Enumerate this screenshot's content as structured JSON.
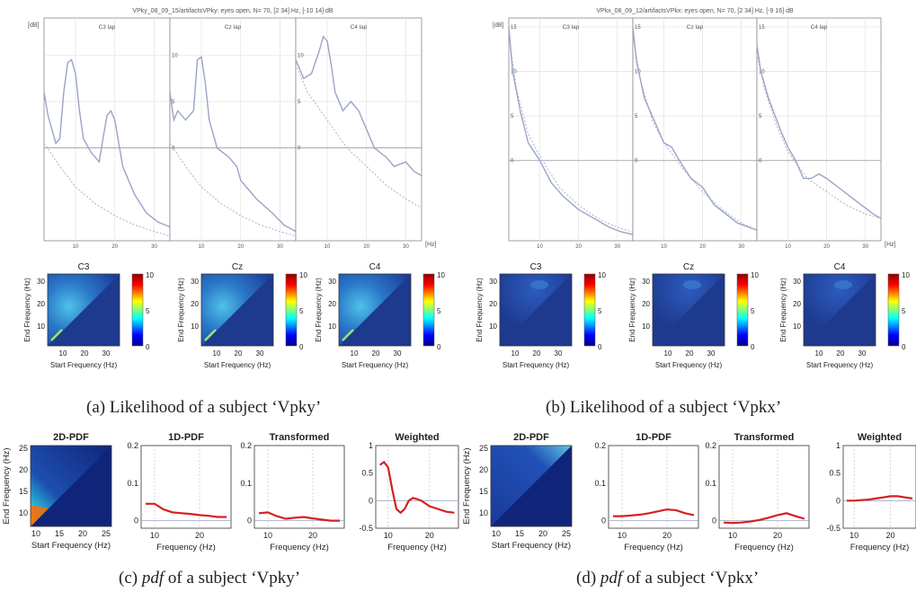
{
  "spectra": [
    {
      "title": "VPky_08_09_15/artifactsVPky: eyes open, N= 70, [2 34] Hz, [-10 14] dB",
      "yunit": "[dB]",
      "xunit": "[Hz]",
      "ylim": [
        -10,
        14
      ],
      "xlim": [
        2,
        34
      ],
      "xticks": [
        "10",
        "20",
        "30"
      ],
      "yticks": [
        {
          "v": 10,
          "t": "10"
        },
        {
          "v": 5,
          "t": "5"
        },
        {
          "v": 0,
          "t": "0"
        }
      ],
      "zero": 0,
      "panels": [
        {
          "label": "C3 lap",
          "curve": [
            [
              2,
              6
            ],
            [
              3,
              3.5
            ],
            [
              5,
              0.5
            ],
            [
              6,
              1
            ],
            [
              7,
              6
            ],
            [
              8,
              9.2
            ],
            [
              9,
              9.5
            ],
            [
              10,
              8
            ],
            [
              11,
              4
            ],
            [
              12,
              1
            ],
            [
              14,
              -0.5
            ],
            [
              16,
              -1.5
            ],
            [
              17,
              1
            ],
            [
              18,
              3.5
            ],
            [
              19,
              4
            ],
            [
              20,
              3
            ],
            [
              22,
              -2
            ],
            [
              25,
              -5
            ],
            [
              28,
              -7
            ],
            [
              31,
              -8
            ],
            [
              34,
              -8.5
            ]
          ],
          "fit": [
            [
              2,
              0.5
            ],
            [
              6,
              -2
            ],
            [
              10,
              -4.2
            ],
            [
              15,
              -6
            ],
            [
              20,
              -7.3
            ],
            [
              25,
              -8.3
            ],
            [
              30,
              -9
            ],
            [
              34,
              -9.5
            ]
          ]
        },
        {
          "label": "Cz lap",
          "curve": [
            [
              2,
              6
            ],
            [
              3,
              3
            ],
            [
              4,
              4
            ],
            [
              6,
              3
            ],
            [
              8,
              4
            ],
            [
              9,
              9.5
            ],
            [
              10,
              9.8
            ],
            [
              11,
              7
            ],
            [
              12,
              3
            ],
            [
              14,
              0
            ],
            [
              17,
              -1
            ],
            [
              19,
              -2
            ],
            [
              20,
              -3.5
            ],
            [
              24,
              -5.5
            ],
            [
              28,
              -7
            ],
            [
              31,
              -8.3
            ],
            [
              34,
              -9
            ]
          ],
          "fit": [
            [
              2,
              0.5
            ],
            [
              6,
              -2
            ],
            [
              10,
              -4.2
            ],
            [
              15,
              -6
            ],
            [
              20,
              -7.3
            ],
            [
              25,
              -8.3
            ],
            [
              30,
              -9
            ],
            [
              34,
              -9.5
            ]
          ]
        },
        {
          "label": "C4 lap",
          "curve": [
            [
              2,
              9.5
            ],
            [
              4,
              7.5
            ],
            [
              6,
              8
            ],
            [
              8,
              10.5
            ],
            [
              9,
              12
            ],
            [
              10,
              11.5
            ],
            [
              11,
              9
            ],
            [
              12,
              6
            ],
            [
              14,
              4
            ],
            [
              16,
              5
            ],
            [
              18,
              4
            ],
            [
              20,
              2
            ],
            [
              22,
              0
            ],
            [
              25,
              -1
            ],
            [
              27,
              -2
            ],
            [
              30,
              -1.5
            ],
            [
              32,
              -2.5
            ],
            [
              34,
              -3
            ]
          ],
          "fit": [
            [
              2,
              9
            ],
            [
              5,
              6
            ],
            [
              10,
              3
            ],
            [
              15,
              0
            ],
            [
              20,
              -2
            ],
            [
              25,
              -4
            ],
            [
              30,
              -5.5
            ],
            [
              34,
              -6.5
            ]
          ]
        }
      ]
    },
    {
      "title": "VPkx_08_09_12/artifactsVPkx: eyes open, N= 70, [2 34] Hz, [-9 16] dB",
      "yunit": "[dB]",
      "xunit": "[Hz]",
      "ylim": [
        -9,
        16
      ],
      "xlim": [
        2,
        34
      ],
      "xticks": [
        "10",
        "20",
        "30"
      ],
      "yticks": [
        {
          "v": 15,
          "t": "15"
        },
        {
          "v": 10,
          "t": "10"
        },
        {
          "v": 5,
          "t": "5"
        },
        {
          "v": 0,
          "t": "0"
        }
      ],
      "zero": 0,
      "panels": [
        {
          "label": "C3 lap",
          "curve": [
            [
              2,
              15
            ],
            [
              3,
              10
            ],
            [
              5,
              5.5
            ],
            [
              7,
              2
            ],
            [
              10,
              0
            ],
            [
              13,
              -2.5
            ],
            [
              16,
              -4
            ],
            [
              20,
              -5.5
            ],
            [
              24,
              -6.5
            ],
            [
              28,
              -7.5
            ],
            [
              31,
              -8
            ],
            [
              34,
              -8.3
            ]
          ],
          "fit": [
            [
              2,
              14
            ],
            [
              4,
              8
            ],
            [
              7,
              3
            ],
            [
              10,
              0.5
            ],
            [
              15,
              -3
            ],
            [
              20,
              -5
            ],
            [
              25,
              -6.5
            ],
            [
              30,
              -7.5
            ],
            [
              34,
              -8
            ]
          ]
        },
        {
          "label": "Cz lap",
          "curve": [
            [
              2,
              15
            ],
            [
              3,
              11
            ],
            [
              5,
              7
            ],
            [
              8,
              4
            ],
            [
              10,
              2
            ],
            [
              12,
              1.5
            ],
            [
              14,
              0
            ],
            [
              17,
              -2
            ],
            [
              20,
              -3
            ],
            [
              23,
              -5
            ],
            [
              26,
              -6
            ],
            [
              29,
              -7
            ],
            [
              32,
              -7.5
            ],
            [
              34,
              -7.8
            ]
          ],
          "fit": [
            [
              2,
              14
            ],
            [
              4,
              9
            ],
            [
              7,
              4.5
            ],
            [
              10,
              2
            ],
            [
              15,
              -1
            ],
            [
              20,
              -3.5
            ],
            [
              25,
              -5.5
            ],
            [
              30,
              -7
            ],
            [
              34,
              -7.8
            ]
          ]
        },
        {
          "label": "C4 lap",
          "curve": [
            [
              2,
              13
            ],
            [
              3,
              10
            ],
            [
              5,
              7
            ],
            [
              8,
              3.5
            ],
            [
              10,
              1.5
            ],
            [
              12,
              0
            ],
            [
              14,
              -2
            ],
            [
              16,
              -2
            ],
            [
              18,
              -1.5
            ],
            [
              20,
              -2
            ],
            [
              23,
              -3
            ],
            [
              26,
              -4
            ],
            [
              29,
              -5
            ],
            [
              32,
              -6
            ],
            [
              34,
              -6.5
            ]
          ],
          "fit": [
            [
              2,
              12
            ],
            [
              4,
              8
            ],
            [
              7,
              4
            ],
            [
              10,
              1
            ],
            [
              15,
              -2
            ],
            [
              20,
              -3.5
            ],
            [
              25,
              -5
            ],
            [
              30,
              -6
            ],
            [
              34,
              -6.5
            ]
          ]
        }
      ]
    }
  ],
  "heatmaps": {
    "ylabel": "End Frequency (Hz)",
    "xlabel": "Start Frequency (Hz)",
    "xticks": [
      "10",
      "20",
      "30"
    ],
    "yticks": [
      "30",
      "20",
      "10"
    ],
    "cbar_ticks": [
      "10",
      "5",
      "0"
    ],
    "groups": [
      {
        "panels": [
          {
            "title": "C3"
          },
          {
            "title": "Cz"
          },
          {
            "title": "C4"
          }
        ],
        "intensity": "high"
      },
      {
        "panels": [
          {
            "title": "C3"
          },
          {
            "title": "Cz"
          },
          {
            "title": "C4"
          }
        ],
        "intensity": "low"
      }
    ]
  },
  "captions": {
    "a_prefix": "(a) ",
    "a_text": "Likelihood of a subject ‘Vpky’",
    "b_prefix": "(b) ",
    "b_text": "Likelihood of a subject ‘Vpkx’",
    "c_prefix": "(c) ",
    "c_em": "pdf",
    "c_text": " of a subject ‘Vpky’",
    "d_prefix": "(d) ",
    "d_em": "pdf",
    "d_text": " of a subject ‘Vpkx’"
  },
  "pdf_rows": [
    {
      "twod": {
        "title": "2D-PDF",
        "ylabel": "End Frequency (Hz)",
        "xlabel": "Start Frequency (Hz)",
        "xticks": [
          "10",
          "15",
          "20",
          "25"
        ],
        "yticks": [
          "25",
          "20",
          "15",
          "10"
        ]
      },
      "lines": [
        {
          "title": "1D-PDF",
          "yticks": [
            "0.2",
            "0.1",
            "0"
          ],
          "ylim": [
            -0.02,
            0.2
          ],
          "xlabel": "Frequency (Hz)",
          "xticks": [
            "10",
            "20"
          ],
          "chart_data": {
            "type": "line",
            "x": [
              8,
              10,
              12,
              14,
              16,
              18,
              20,
              22,
              24,
              26
            ],
            "y": [
              0.045,
              0.045,
              0.03,
              0.022,
              0.02,
              0.018,
              0.015,
              0.013,
              0.01,
              0.01
            ]
          }
        },
        {
          "title": "Transformed",
          "yticks": [
            "0.2",
            "0.1",
            "0"
          ],
          "ylim": [
            -0.02,
            0.2
          ],
          "xlabel": "Frequency (Hz)",
          "xticks": [
            "10",
            "20"
          ],
          "chart_data": {
            "type": "line",
            "x": [
              8,
              10,
              12,
              14,
              16,
              18,
              20,
              22,
              24,
              26
            ],
            "y": [
              0.02,
              0.022,
              0.012,
              0.005,
              0.008,
              0.01,
              0.006,
              0.003,
              0.0,
              0.0
            ]
          }
        },
        {
          "title": "Weighted",
          "yticks": [
            "1",
            "0.5",
            "0",
            "-0.5"
          ],
          "ylim": [
            -0.5,
            1
          ],
          "xlabel": "Frequency (Hz)",
          "xticks": [
            "10",
            "20"
          ],
          "chart_data": {
            "type": "line",
            "x": [
              8,
              9,
              10,
              11,
              12,
              13,
              14,
              15,
              16,
              17,
              18,
              19,
              20,
              22,
              24,
              26
            ],
            "y": [
              0.65,
              0.7,
              0.6,
              0.2,
              -0.15,
              -0.22,
              -0.15,
              0.0,
              0.05,
              0.03,
              0.0,
              -0.05,
              -0.1,
              -0.15,
              -0.2,
              -0.22
            ]
          }
        }
      ]
    },
    {
      "twod": {
        "title": "2D-PDF",
        "ylabel": "End Frequency (Hz)",
        "xlabel": "Start Frequency (Hz)",
        "xticks": [
          "10",
          "15",
          "20",
          "25"
        ],
        "yticks": [
          "25",
          "20",
          "15",
          "10"
        ]
      },
      "lines": [
        {
          "title": "1D-PDF",
          "yticks": [
            "0.2",
            "0.1",
            "0"
          ],
          "ylim": [
            -0.02,
            0.2
          ],
          "xlabel": "Frequency (Hz)",
          "xticks": [
            "10",
            "20"
          ],
          "chart_data": {
            "type": "line",
            "x": [
              8,
              10,
              12,
              14,
              16,
              18,
              20,
              22,
              24,
              26
            ],
            "y": [
              0.012,
              0.012,
              0.014,
              0.016,
              0.02,
              0.025,
              0.03,
              0.028,
              0.02,
              0.015
            ]
          }
        },
        {
          "title": "Transformed",
          "yticks": [
            "0.2",
            "0.1",
            "0"
          ],
          "ylim": [
            -0.02,
            0.2
          ],
          "xlabel": "Frequency (Hz)",
          "xticks": [
            "10",
            "20"
          ],
          "chart_data": {
            "type": "line",
            "x": [
              8,
              10,
              12,
              14,
              16,
              18,
              20,
              22,
              24,
              26
            ],
            "y": [
              -0.005,
              -0.006,
              -0.005,
              -0.002,
              0.002,
              0.008,
              0.015,
              0.02,
              0.012,
              0.005
            ]
          }
        },
        {
          "title": "Weighted",
          "yticks": [
            "1",
            "0.5",
            "0",
            "-0.5"
          ],
          "ylim": [
            -0.5,
            1
          ],
          "xlabel": "Frequency (Hz)",
          "xticks": [
            "10",
            "20"
          ],
          "chart_data": {
            "type": "line",
            "x": [
              8,
              10,
              12,
              14,
              16,
              18,
              20,
              22,
              24,
              26
            ],
            "y": [
              0.0,
              0.0,
              0.01,
              0.02,
              0.04,
              0.06,
              0.08,
              0.08,
              0.06,
              0.04
            ]
          }
        }
      ]
    }
  ],
  "colors": {
    "curve": "#9aa3c8",
    "fit": "#a9b0cf",
    "pdfline": "#d62020",
    "heatlow": "#1d3a8f"
  }
}
